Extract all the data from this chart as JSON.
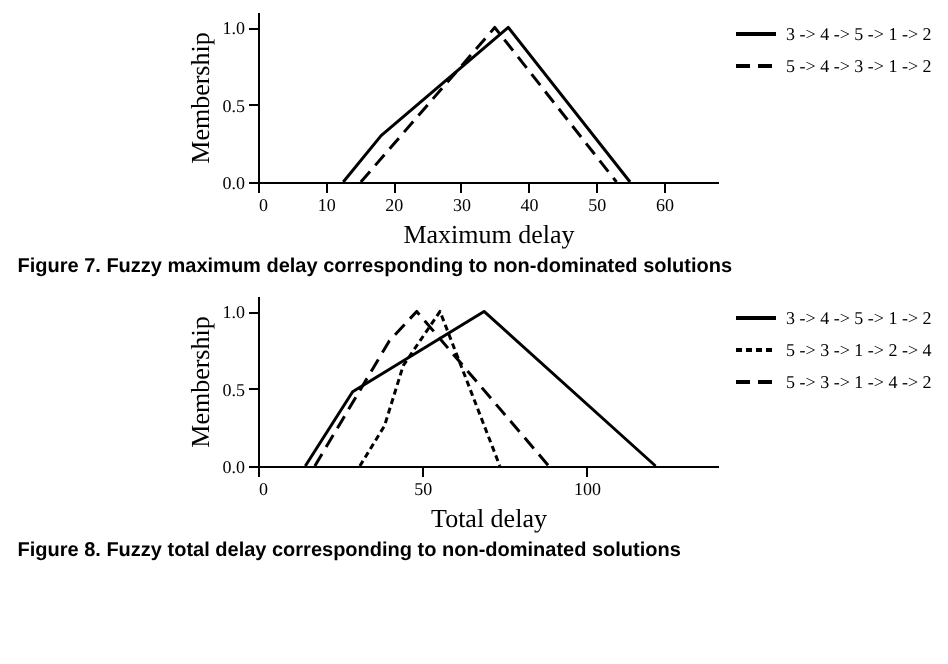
{
  "chart_data": [
    {
      "type": "line",
      "title": "Figure 7.  Fuzzy maximum delay corresponding to non-dominated solutions",
      "xlabel": "Maximum delay",
      "ylabel": "Membership",
      "series": [
        {
          "name": "3 -> 4 -> 5 -> 1 -> 2",
          "color": "#000000",
          "line_style": "solid",
          "x": [
            12.6,
            18.2,
            37,
            55
          ],
          "values": [
            0,
            0.3,
            1.0,
            0
          ]
        },
        {
          "name": "5 -> 4 -> 3 -> 1 -> 2",
          "color": "#000000",
          "line_style": "dashed",
          "x": [
            15.2,
            35,
            53
          ],
          "values": [
            0,
            1.0,
            0
          ]
        }
      ],
      "xlim": [
        0,
        68
      ],
      "xticks": [
        0,
        10,
        20,
        30,
        40,
        50,
        60
      ],
      "ylim": [
        0,
        1.1
      ],
      "yticks": [
        {
          "value": 0,
          "label": "0.0"
        },
        {
          "value": 0.5,
          "label": "0.5"
        },
        {
          "value": 1,
          "label": "1.0"
        }
      ],
      "grid": false,
      "legend": "top right",
      "marker": "none"
    },
    {
      "type": "line",
      "title": "Figure 8.  Fuzzy total delay corresponding to non-dominated solutions",
      "xlabel": "Total delay",
      "ylabel": "Membership",
      "series": [
        {
          "name": "3 -> 4 -> 5 -> 1 -> 2",
          "color": "#000000",
          "line_style": "solid",
          "x": [
            14.4,
            28.8,
            68.8,
            121
          ],
          "values": [
            0,
            0.48,
            1.0,
            0
          ]
        },
        {
          "name": "5 -> 3 -> 1 -> 2 -> 4",
          "color": "#000000",
          "line_style": "dotted",
          "x": [
            31,
            38.5,
            44.2,
            55.4,
            73.6
          ],
          "values": [
            0,
            0.26,
            0.65,
            1.0,
            0
          ]
        },
        {
          "name": "5 -> 3 -> 1 -> 4 -> 2",
          "color": "#000000",
          "line_style": "dashed",
          "x": [
            17.3,
            40,
            48.3,
            88.5
          ],
          "values": [
            0,
            0.81,
            1.0,
            0
          ]
        }
      ],
      "xlim": [
        0,
        140
      ],
      "xticks": [
        0,
        50,
        100
      ],
      "ylim": [
        0,
        1.1
      ],
      "yticks": [
        {
          "value": 0,
          "label": "0.0"
        },
        {
          "value": 0.5,
          "label": "0.5"
        },
        {
          "value": 1,
          "label": "1.0"
        }
      ],
      "grid": false,
      "legend": "top right",
      "marker": "none"
    }
  ]
}
